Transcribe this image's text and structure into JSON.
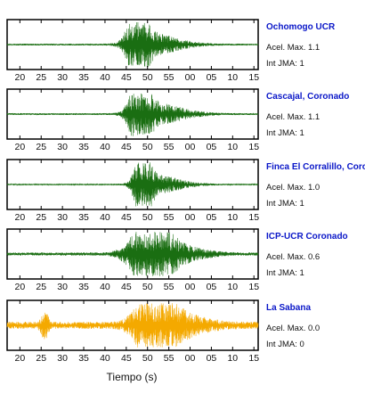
{
  "chart_data": {
    "type": "line",
    "x_axis": {
      "label": "Tiempo (s)",
      "tick_labels": [
        "20",
        "25",
        "30",
        "35",
        "40",
        "45",
        "50",
        "55",
        "00",
        "05",
        "10",
        "15"
      ],
      "range_s": [
        17,
        76
      ],
      "first_tick_s": 20,
      "tick_step_s": 5
    },
    "panels": [
      {
        "station": "Ochomogo UCR",
        "accel_label": "Acel. Max. 1.1",
        "jma_label": "Int JMA: 1",
        "color": "#1a6e12",
        "noise": 0.04,
        "bursts": [
          {
            "center_s": 46.8,
            "width_s": 1.6,
            "amp": 0.95
          },
          {
            "center_s": 48.6,
            "width_s": 1.8,
            "amp": 0.8
          },
          {
            "center_s": 51.5,
            "width_s": 4.0,
            "amp": 0.35
          },
          {
            "center_s": 56.0,
            "width_s": 5.0,
            "amp": 0.12
          }
        ]
      },
      {
        "station": "Cascajal, Coronado",
        "accel_label": "Acel. Max. 1.1",
        "jma_label": "Int JMA: 1",
        "color": "#1a6e12",
        "noise": 0.04,
        "bursts": [
          {
            "center_s": 47.2,
            "width_s": 1.6,
            "amp": 0.85
          },
          {
            "center_s": 49.2,
            "width_s": 1.8,
            "amp": 0.75
          },
          {
            "center_s": 52.5,
            "width_s": 4.0,
            "amp": 0.35
          },
          {
            "center_s": 57.5,
            "width_s": 5.0,
            "amp": 0.12
          }
        ]
      },
      {
        "station": "Finca El Corralillo, Coronado",
        "accel_label": "Acel. Max. 1.0",
        "jma_label": "Int JMA: 1",
        "color": "#1a6e12",
        "noise": 0.03,
        "bursts": [
          {
            "center_s": 48.0,
            "width_s": 1.2,
            "amp": 0.85
          },
          {
            "center_s": 49.6,
            "width_s": 1.4,
            "amp": 0.95
          },
          {
            "center_s": 52.8,
            "width_s": 3.5,
            "amp": 0.3
          },
          {
            "center_s": 57.0,
            "width_s": 4.5,
            "amp": 0.1
          }
        ]
      },
      {
        "station": "ICP-UCR Coronado",
        "accel_label": "Acel. Max. 0.6",
        "jma_label": "Int JMA: 1",
        "color": "#1a6e12",
        "noise": 0.07,
        "bursts": [
          {
            "center_s": 47.8,
            "width_s": 2.8,
            "amp": 0.6
          },
          {
            "center_s": 51.0,
            "width_s": 2.8,
            "amp": 0.95
          },
          {
            "center_s": 53.8,
            "width_s": 3.0,
            "amp": 0.65
          },
          {
            "center_s": 58.5,
            "width_s": 5.0,
            "amp": 0.25
          }
        ]
      },
      {
        "station": "La Sabana",
        "accel_label": "Acel. Max. 0.0",
        "jma_label": "Int JMA: 0",
        "color": "#f4a900",
        "noise": 0.16,
        "bursts": [
          {
            "center_s": 25.8,
            "width_s": 0.7,
            "amp": 0.55
          },
          {
            "center_s": 48.6,
            "width_s": 2.5,
            "amp": 0.45
          },
          {
            "center_s": 51.5,
            "width_s": 2.6,
            "amp": 0.95
          },
          {
            "center_s": 54.5,
            "width_s": 3.2,
            "amp": 0.6
          },
          {
            "center_s": 59.0,
            "width_s": 5.0,
            "amp": 0.3
          }
        ]
      }
    ]
  }
}
